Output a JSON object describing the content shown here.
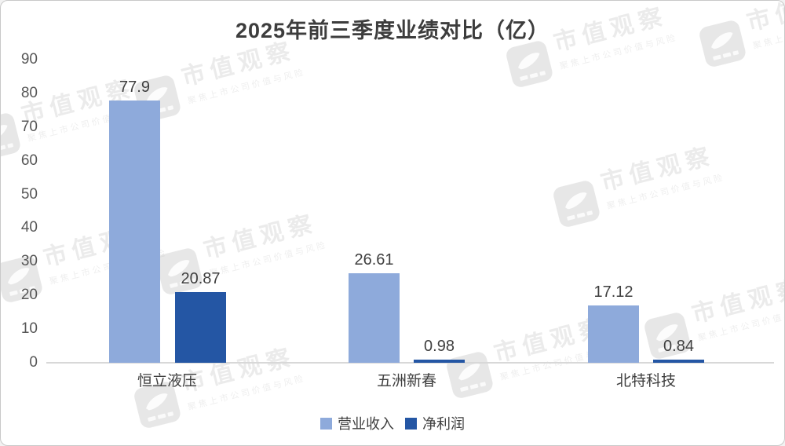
{
  "title": "2025年前三季度业绩对比（亿）",
  "watermark": {
    "brand": "市值观察",
    "tagline": "聚焦上市公司价值与风险"
  },
  "legend": [
    {
      "label": "营业收入",
      "color": "#8EAADB"
    },
    {
      "label": "净利润",
      "color": "#2456A4"
    }
  ],
  "chart_data": {
    "type": "bar",
    "title": "2025年前三季度业绩对比（亿）",
    "categories": [
      "恒立液压",
      "五洲新春",
      "北特科技"
    ],
    "series": [
      {
        "name": "营业收入",
        "color": "#8EAADB",
        "values": [
          77.9,
          26.61,
          17.12
        ]
      },
      {
        "name": "净利润",
        "color": "#2456A4",
        "values": [
          20.87,
          0.98,
          0.84
        ]
      }
    ],
    "value_labels": [
      "77.9",
      "20.87",
      "26.61",
      "0.98",
      "17.12",
      "0.84"
    ],
    "xlabel": "",
    "ylabel": "",
    "ylim": [
      0,
      90
    ],
    "yticks": [
      0,
      10,
      20,
      30,
      40,
      50,
      60,
      70,
      80,
      90
    ],
    "grid": false,
    "legend_position": "bottom"
  }
}
